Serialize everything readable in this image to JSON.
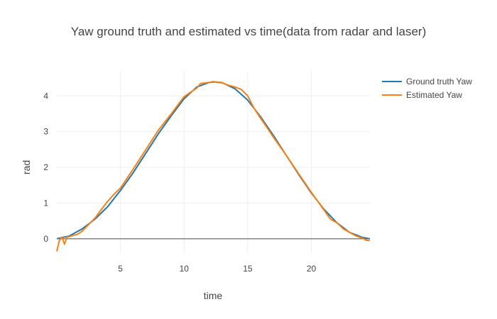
{
  "chart_data": {
    "type": "line",
    "title": "Yaw ground truth and estimated vs time(data from radar and laser)",
    "xlabel": "time",
    "ylabel": "rad",
    "xlim": [
      0,
      24.6
    ],
    "ylim": [
      -0.4,
      4.7
    ],
    "x_ticks": [
      5,
      10,
      15,
      20
    ],
    "y_ticks": [
      0,
      1,
      2,
      3,
      4
    ],
    "grid": true,
    "zero_line": true,
    "legend_position": "top-right",
    "series": [
      {
        "name": "Ground truth Yaw",
        "color": "#1f77b4",
        "x": [
          0,
          1,
          2,
          3,
          4,
          5,
          6,
          7,
          8,
          9,
          10,
          11,
          12,
          12.5,
          13,
          14,
          15,
          16,
          17,
          18,
          19,
          20,
          21,
          22,
          23,
          24,
          24.6
        ],
        "y": [
          0,
          0.08,
          0.28,
          0.55,
          0.9,
          1.35,
          1.85,
          2.4,
          2.95,
          3.45,
          3.92,
          4.25,
          4.38,
          4.39,
          4.37,
          4.2,
          3.88,
          3.42,
          2.9,
          2.35,
          1.8,
          1.28,
          0.82,
          0.45,
          0.18,
          0.04,
          0.0
        ]
      },
      {
        "name": "Estimated Yaw",
        "color": "#ff7f0e",
        "x": [
          0,
          0.2,
          0.4,
          0.6,
          0.8,
          1.0,
          1.3,
          1.6,
          2.0,
          2.5,
          3.0,
          3.5,
          4.0,
          4.5,
          5.0,
          6.0,
          7.0,
          8.0,
          9.0,
          10.0,
          10.5,
          11.0,
          11.3,
          11.6,
          12.0,
          12.3,
          12.6,
          13.0,
          13.5,
          14.0,
          14.5,
          15.0,
          15.5,
          16.0,
          16.5,
          17.0,
          18.0,
          19.0,
          20.0,
          21.0,
          21.5,
          22.0,
          22.5,
          23.0,
          23.5,
          24.0,
          24.3,
          24.6
        ],
        "y": [
          -0.35,
          -0.05,
          0.05,
          -0.15,
          0.05,
          0.06,
          0.1,
          0.12,
          0.22,
          0.4,
          0.58,
          0.82,
          1.05,
          1.25,
          1.42,
          1.95,
          2.5,
          3.05,
          3.5,
          3.98,
          4.1,
          4.22,
          4.35,
          4.36,
          4.38,
          4.4,
          4.38,
          4.36,
          4.3,
          4.25,
          4.18,
          4.0,
          3.65,
          3.38,
          3.12,
          2.85,
          2.35,
          1.82,
          1.3,
          0.8,
          0.55,
          0.45,
          0.28,
          0.18,
          0.08,
          0.02,
          -0.04,
          -0.05
        ]
      }
    ]
  }
}
